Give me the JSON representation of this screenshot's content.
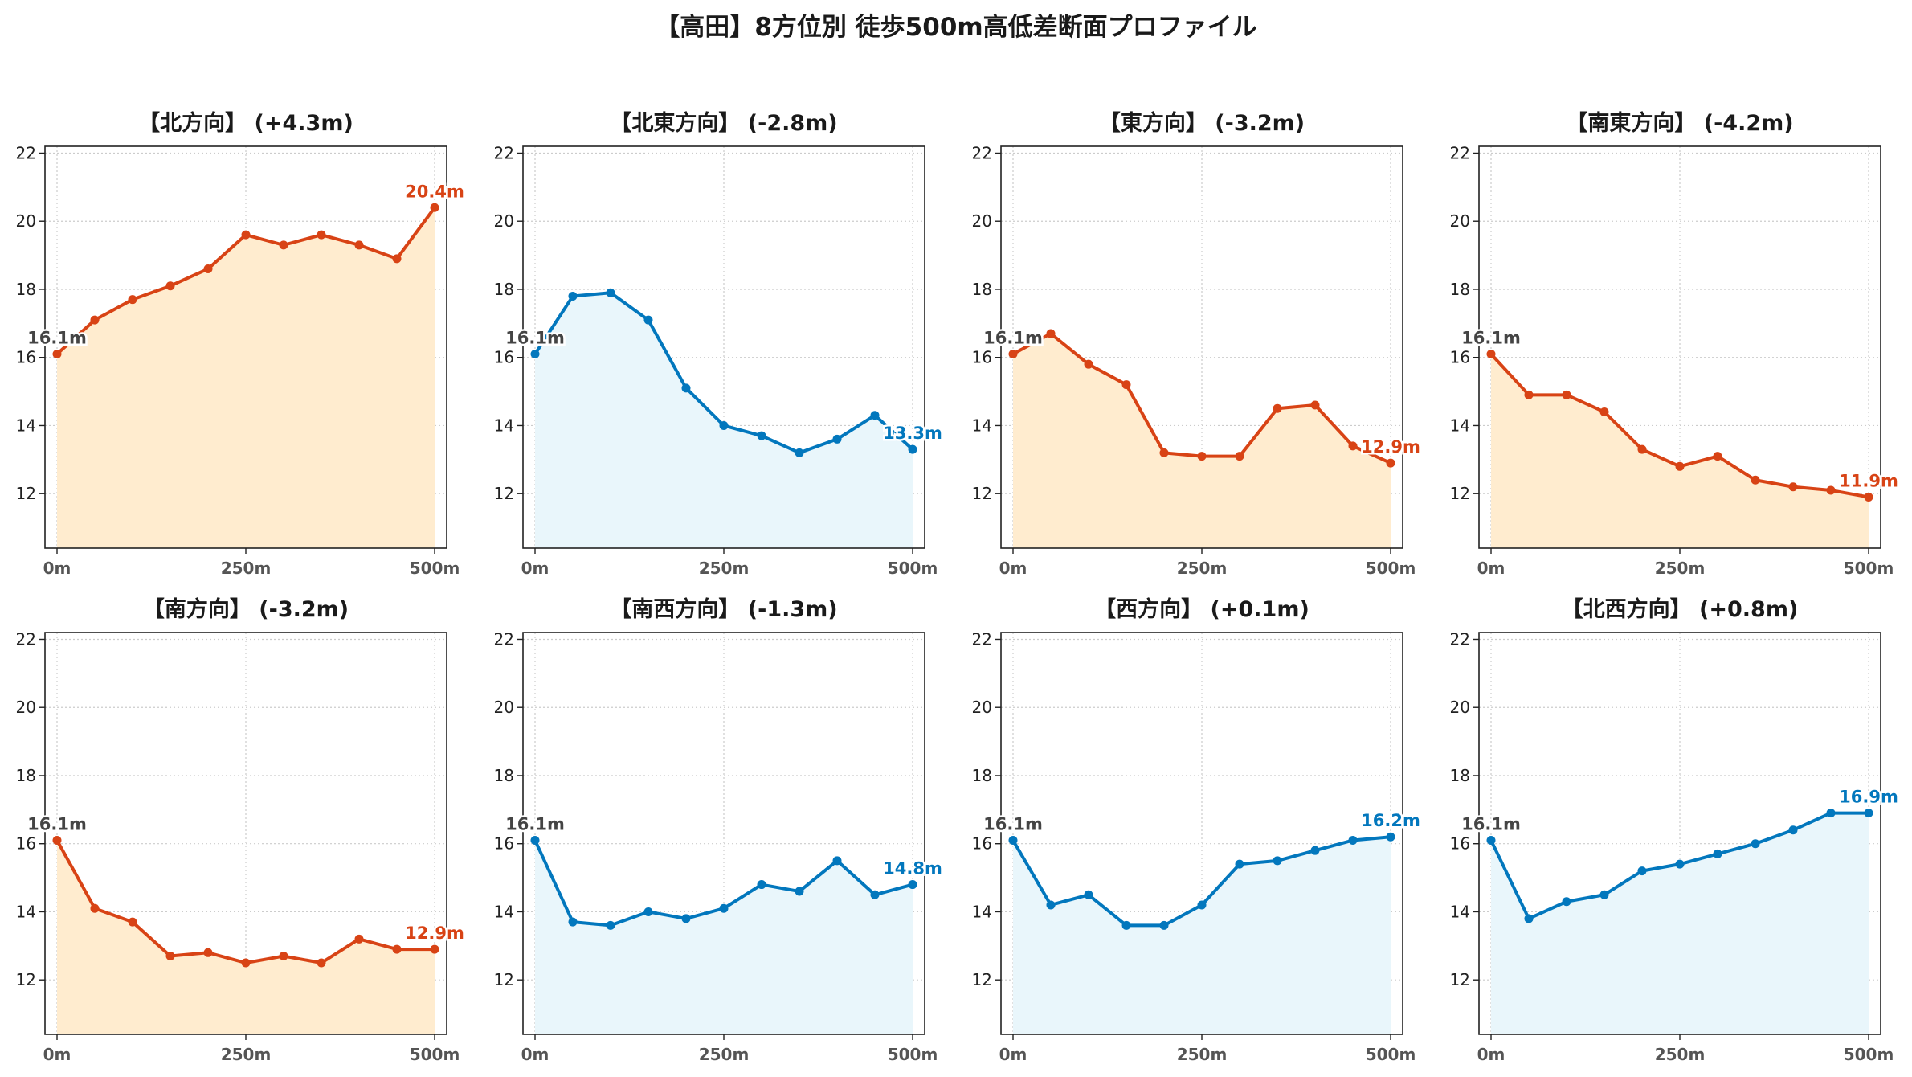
{
  "title": "【高田】8方位別 徒歩500m高低差断面プロファイル",
  "colors": {
    "up": "#d84315",
    "down": "#0277bd",
    "up_fill": "#ffeccf",
    "down_fill": "#e9f6fb",
    "start_label": "#444444"
  },
  "chart_data": [
    {
      "type": "area",
      "title": "【北方向】 (+4.3m)",
      "trend": "up",
      "x": [
        0,
        50,
        100,
        150,
        200,
        250,
        300,
        350,
        400,
        450,
        500
      ],
      "y": [
        16.1,
        17.1,
        17.7,
        18.1,
        18.6,
        19.6,
        19.3,
        19.6,
        19.3,
        18.9,
        20.4
      ],
      "start_label": "16.1m",
      "end_label": "20.4m",
      "xticks": [
        "0m",
        "250m",
        "500m"
      ],
      "yticks": [
        12,
        14,
        16,
        18,
        20,
        22
      ],
      "ylim": [
        10.4,
        22.2
      ],
      "grid": true
    },
    {
      "type": "area",
      "title": "【北東方向】 (-2.8m)",
      "trend": "down",
      "x": [
        0,
        50,
        100,
        150,
        200,
        250,
        300,
        350,
        400,
        450,
        500
      ],
      "y": [
        16.1,
        17.8,
        17.9,
        17.1,
        15.1,
        14.0,
        13.7,
        13.2,
        13.6,
        14.3,
        13.3
      ],
      "start_label": "16.1m",
      "end_label": "13.3m",
      "xticks": [
        "0m",
        "250m",
        "500m"
      ],
      "yticks": [
        12,
        14,
        16,
        18,
        20,
        22
      ],
      "ylim": [
        10.4,
        22.2
      ],
      "grid": true
    },
    {
      "type": "area",
      "title": "【東方向】 (-3.2m)",
      "trend": "up",
      "x": [
        0,
        50,
        100,
        150,
        200,
        250,
        300,
        350,
        400,
        450,
        500
      ],
      "y": [
        16.1,
        16.7,
        15.8,
        15.2,
        13.2,
        13.1,
        13.1,
        14.5,
        14.6,
        13.4,
        12.9
      ],
      "start_label": "16.1m",
      "end_label": "12.9m",
      "xticks": [
        "0m",
        "250m",
        "500m"
      ],
      "yticks": [
        12,
        14,
        16,
        18,
        20,
        22
      ],
      "ylim": [
        10.4,
        22.2
      ],
      "grid": true
    },
    {
      "type": "area",
      "title": "【南東方向】 (-4.2m)",
      "trend": "up",
      "x": [
        0,
        50,
        100,
        150,
        200,
        250,
        300,
        350,
        400,
        450,
        500
      ],
      "y": [
        16.1,
        14.9,
        14.9,
        14.4,
        13.3,
        12.8,
        13.1,
        12.4,
        12.2,
        12.1,
        11.9
      ],
      "start_label": "16.1m",
      "end_label": "11.9m",
      "xticks": [
        "0m",
        "250m",
        "500m"
      ],
      "yticks": [
        12,
        14,
        16,
        18,
        20,
        22
      ],
      "ylim": [
        10.4,
        22.2
      ],
      "grid": true
    },
    {
      "type": "area",
      "title": "【南方向】 (-3.2m)",
      "trend": "up",
      "x": [
        0,
        50,
        100,
        150,
        200,
        250,
        300,
        350,
        400,
        450,
        500
      ],
      "y": [
        16.1,
        14.1,
        13.7,
        12.7,
        12.8,
        12.5,
        12.7,
        12.5,
        13.2,
        12.9,
        12.9
      ],
      "start_label": "16.1m",
      "end_label": "12.9m",
      "xticks": [
        "0m",
        "250m",
        "500m"
      ],
      "yticks": [
        12,
        14,
        16,
        18,
        20,
        22
      ],
      "ylim": [
        10.4,
        22.2
      ],
      "grid": true
    },
    {
      "type": "area",
      "title": "【南西方向】 (-1.3m)",
      "trend": "down",
      "x": [
        0,
        50,
        100,
        150,
        200,
        250,
        300,
        350,
        400,
        450,
        500
      ],
      "y": [
        16.1,
        13.7,
        13.6,
        14.0,
        13.8,
        14.1,
        14.8,
        14.6,
        15.5,
        14.5,
        14.8
      ],
      "start_label": "16.1m",
      "end_label": "14.8m",
      "xticks": [
        "0m",
        "250m",
        "500m"
      ],
      "yticks": [
        12,
        14,
        16,
        18,
        20,
        22
      ],
      "ylim": [
        10.4,
        22.2
      ],
      "grid": true
    },
    {
      "type": "area",
      "title": "【西方向】 (+0.1m)",
      "trend": "down",
      "x": [
        0,
        50,
        100,
        150,
        200,
        250,
        300,
        350,
        400,
        450,
        500
      ],
      "y": [
        16.1,
        14.2,
        14.5,
        13.6,
        13.6,
        14.2,
        15.4,
        15.5,
        15.8,
        16.1,
        16.2
      ],
      "start_label": "16.1m",
      "end_label": "16.2m",
      "xticks": [
        "0m",
        "250m",
        "500m"
      ],
      "yticks": [
        12,
        14,
        16,
        18,
        20,
        22
      ],
      "ylim": [
        10.4,
        22.2
      ],
      "grid": true
    },
    {
      "type": "area",
      "title": "【北西方向】 (+0.8m)",
      "trend": "down",
      "x": [
        0,
        50,
        100,
        150,
        200,
        250,
        300,
        350,
        400,
        450,
        500
      ],
      "y": [
        16.1,
        13.8,
        14.3,
        14.5,
        15.2,
        15.4,
        15.7,
        16.0,
        16.4,
        16.9,
        16.9
      ],
      "start_label": "16.1m",
      "end_label": "16.9m",
      "xticks": [
        "0m",
        "250m",
        "500m"
      ],
      "yticks": [
        12,
        14,
        16,
        18,
        20,
        22
      ],
      "ylim": [
        10.4,
        22.2
      ],
      "grid": true
    }
  ]
}
